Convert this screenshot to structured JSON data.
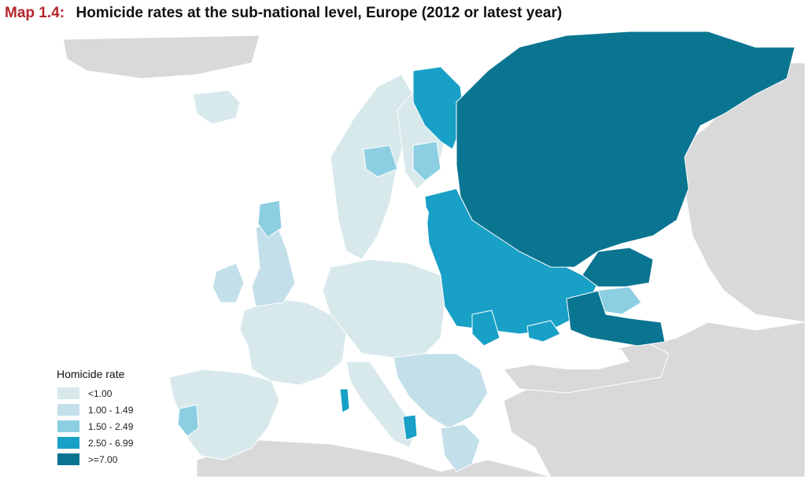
{
  "title": {
    "label": "Map 1.4:",
    "text": "Homicide rates at the sub-national level, Europe (2012 or latest year)"
  },
  "legend": {
    "title": "Homicide rate",
    "items": [
      {
        "label": "<1.00",
        "color": "#d8e9ec"
      },
      {
        "label": "1.00 - 1.49",
        "color": "#c3dfea"
      },
      {
        "label": "1.50 - 2.49",
        "color": "#8ccfe2"
      },
      {
        "label": "2.50 - 6.99",
        "color": "#18a0c6"
      },
      {
        "label": ">=7.00",
        "color": "#0a7591"
      }
    ]
  },
  "colors": {
    "background_land": "#d9d9d9",
    "sea": "#ffffff",
    "border": "#ffffff"
  }
}
